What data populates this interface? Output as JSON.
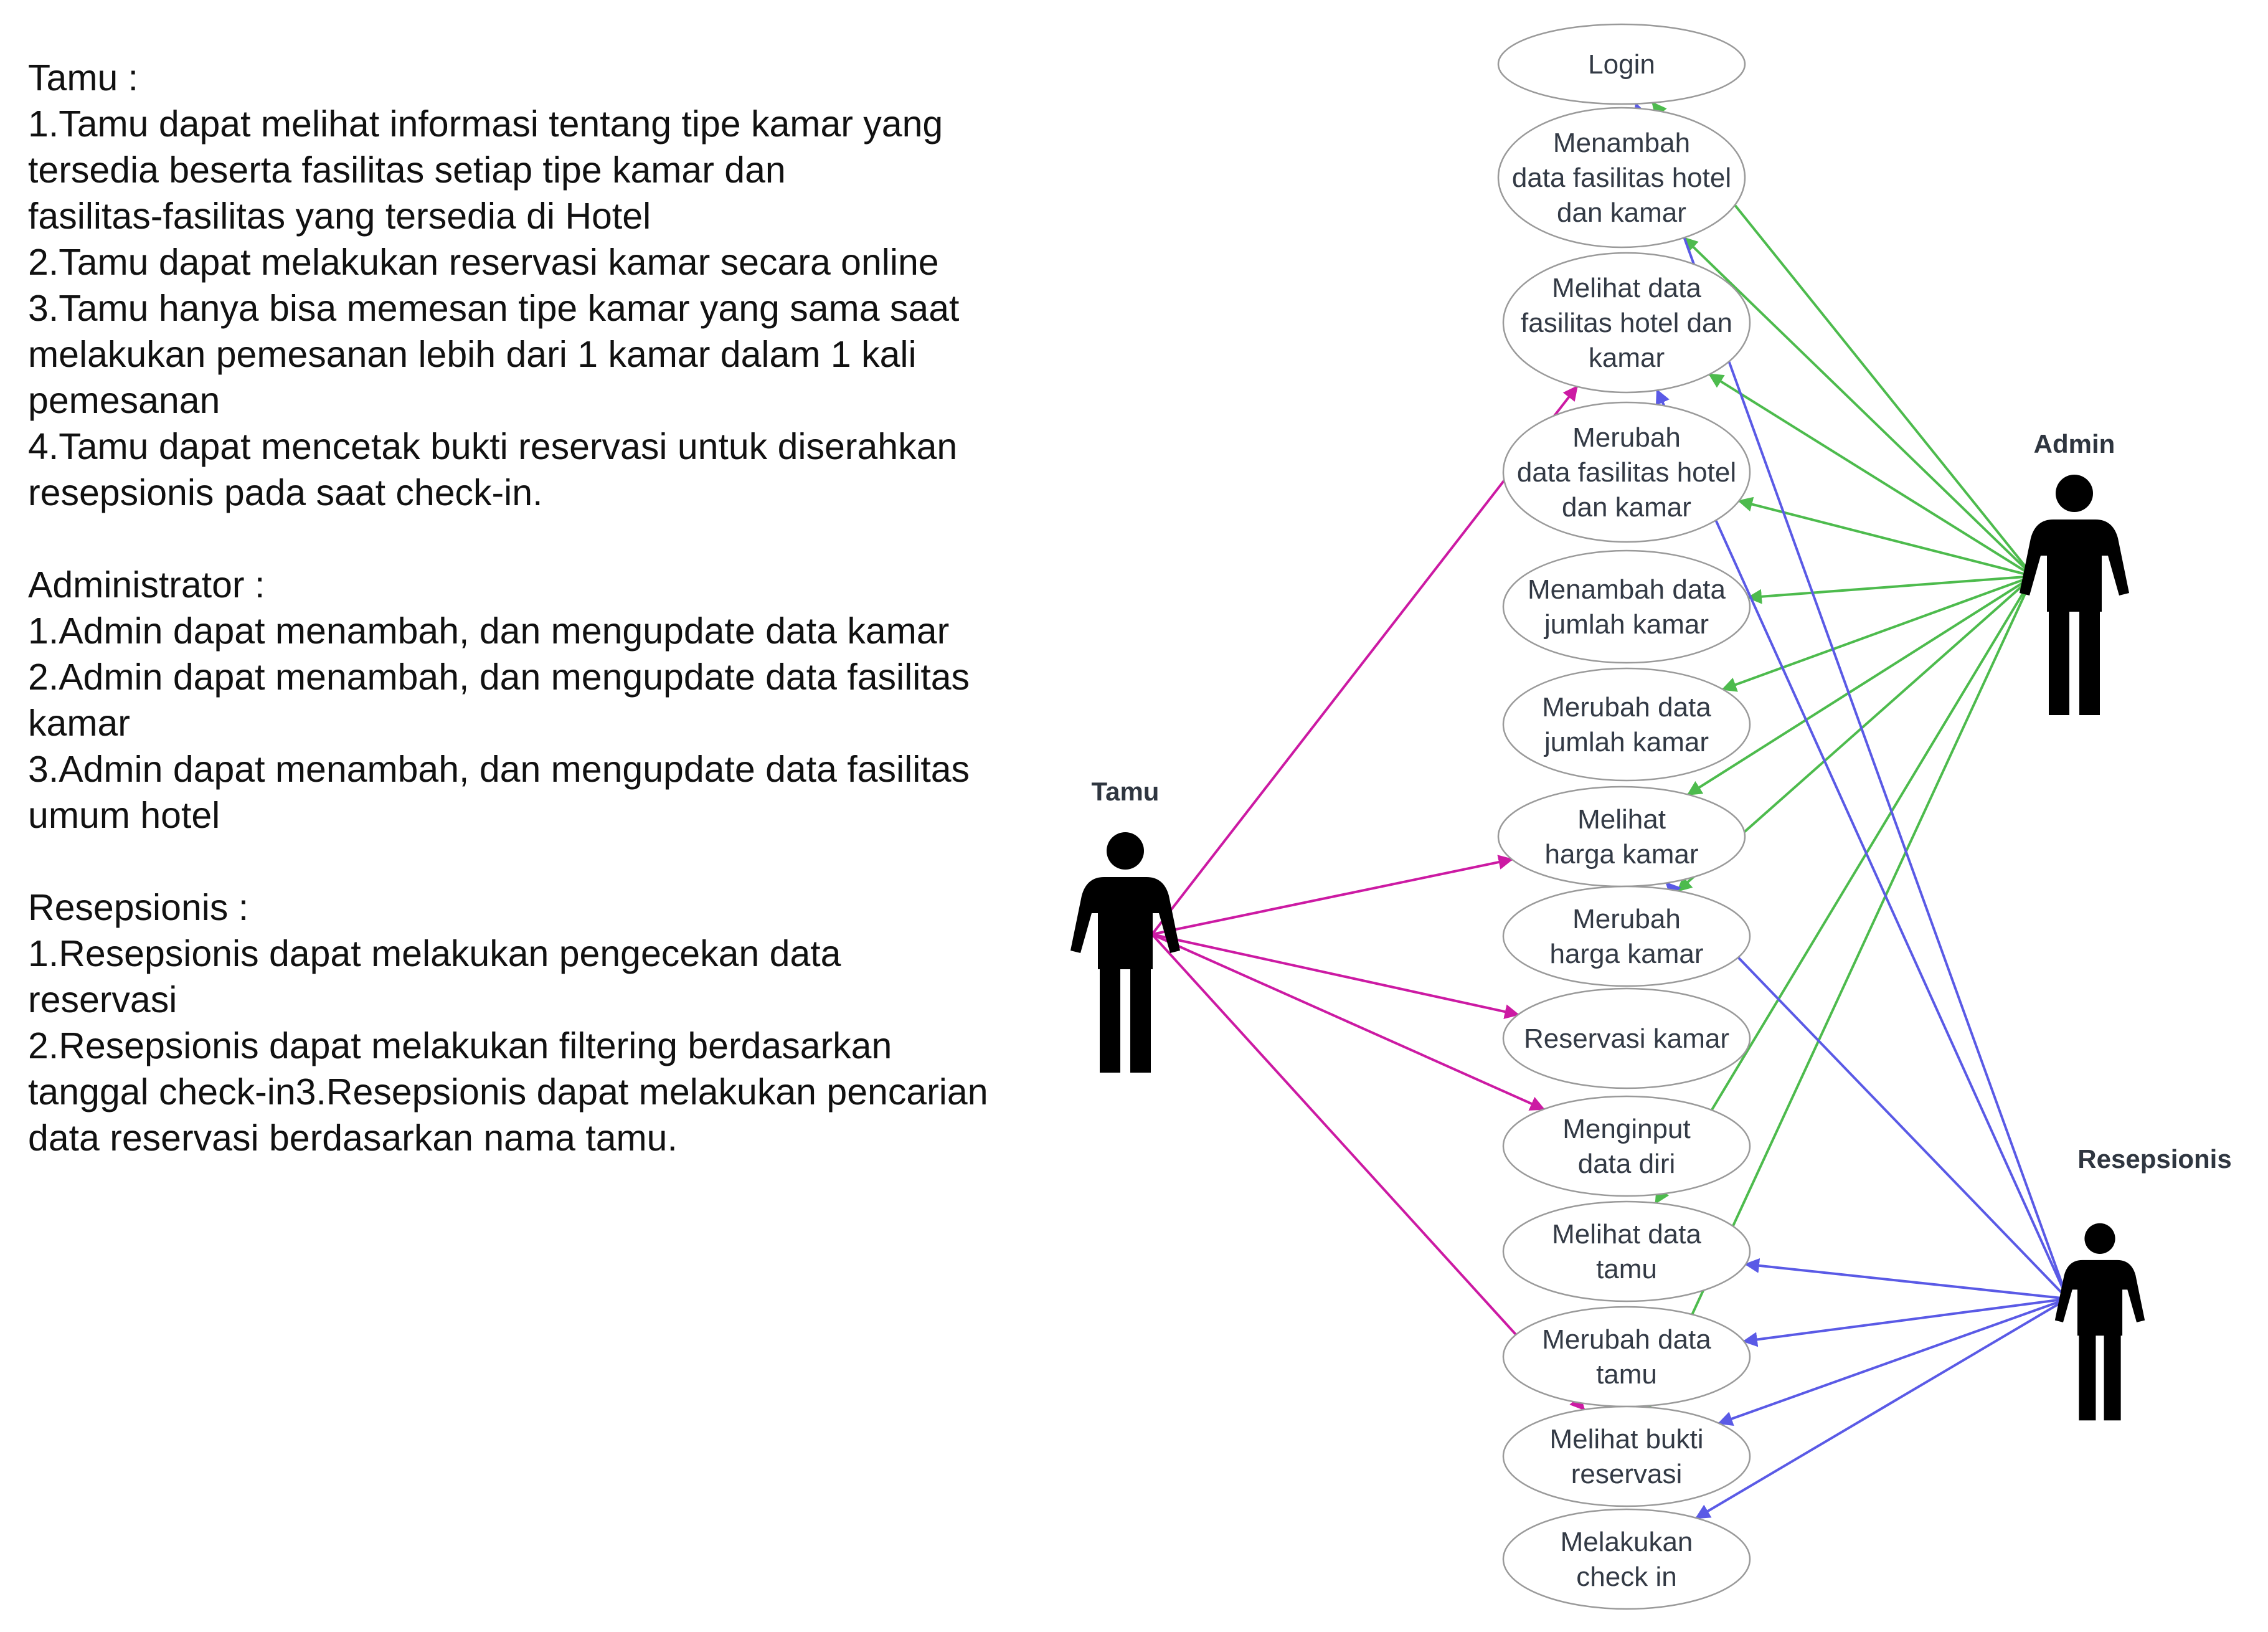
{
  "description": [
    {
      "heading": "Tamu :",
      "lines": [
        "1.Tamu dapat melihat informasi tentang tipe kamar yang",
        "tersedia beserta fasilitas setiap tipe kamar dan",
        "fasilitas-fasilitas yang tersedia di Hotel",
        "2.Tamu dapat melakukan reservasi kamar secara online",
        "3.Tamu hanya bisa memesan tipe kamar yang sama saat",
        "melakukan pemesanan lebih dari 1 kamar dalam 1 kali",
        "pemesanan",
        "4.Tamu dapat mencetak bukti reservasi untuk diserahkan",
        "resepsionis pada saat check-in."
      ]
    },
    {
      "heading": "Administrator :",
      "lines": [
        "1.Admin dapat menambah, dan mengupdate data kamar",
        "2.Admin dapat menambah, dan mengupdate data fasilitas",
        "kamar",
        "3.Admin dapat menambah, dan mengupdate data fasilitas",
        "umum hotel"
      ]
    },
    {
      "heading": "Resepsionis :",
      "lines": [
        "1.Resepsionis dapat melakukan pengecekan data",
        "reservasi",
        "2.Resepsionis dapat melakukan filtering berdasarkan",
        "tanggal check-in3.Resepsionis dapat melakukan pencarian",
        "data reservasi berdasarkan nama tamu."
      ]
    }
  ],
  "actors": [
    {
      "id": "tamu",
      "label": "Tamu"
    },
    {
      "id": "admin",
      "label": "Admin"
    },
    {
      "id": "resepsionis",
      "label": "Resepsionis"
    }
  ],
  "use_cases": [
    {
      "id": "login",
      "lines": [
        "Login"
      ]
    },
    {
      "id": "menambah-fasilitas",
      "lines": [
        "Menambah",
        "data fasilitas hotel",
        "dan kamar"
      ]
    },
    {
      "id": "melihat-fasilitas",
      "lines": [
        "Melihat data",
        "fasilitas hotel dan",
        "kamar"
      ]
    },
    {
      "id": "merubah-fasilitas",
      "lines": [
        "Merubah",
        "data fasilitas hotel",
        "dan kamar"
      ]
    },
    {
      "id": "menambah-jumlah",
      "lines": [
        "Menambah data",
        "jumlah kamar"
      ]
    },
    {
      "id": "merubah-jumlah",
      "lines": [
        "Merubah data",
        "jumlah kamar"
      ]
    },
    {
      "id": "melihat-harga",
      "lines": [
        "Melihat",
        "harga kamar"
      ]
    },
    {
      "id": "merubah-harga",
      "lines": [
        "Merubah",
        "harga kamar"
      ]
    },
    {
      "id": "reservasi-kamar",
      "lines": [
        "Reservasi kamar"
      ]
    },
    {
      "id": "menginput-data-diri",
      "lines": [
        "Menginput",
        "data diri"
      ]
    },
    {
      "id": "melihat-data-tamu",
      "lines": [
        "Melihat data",
        "tamu"
      ]
    },
    {
      "id": "merubah-data-tamu",
      "lines": [
        "Merubah data",
        "tamu"
      ]
    },
    {
      "id": "melihat-bukti-reservasi",
      "lines": [
        "Melihat bukti",
        "reservasi"
      ]
    },
    {
      "id": "melakukan-check-in",
      "lines": [
        "Melakukan",
        "check in"
      ]
    }
  ],
  "colors": {
    "tamu": "#cc1aa3",
    "admin": "#4dbb4d",
    "resepsionis": "#5a5ae6",
    "ellipse_stroke": "#9a9a9a",
    "actor_fill": "#000000"
  },
  "associations": [
    {
      "actor": "tamu",
      "use_case": "melihat-fasilitas"
    },
    {
      "actor": "tamu",
      "use_case": "melihat-harga"
    },
    {
      "actor": "tamu",
      "use_case": "reservasi-kamar"
    },
    {
      "actor": "tamu",
      "use_case": "menginput-data-diri"
    },
    {
      "actor": "tamu",
      "use_case": "melihat-bukti-reservasi"
    },
    {
      "actor": "admin",
      "use_case": "login"
    },
    {
      "actor": "admin",
      "use_case": "menambah-fasilitas"
    },
    {
      "actor": "admin",
      "use_case": "melihat-fasilitas"
    },
    {
      "actor": "admin",
      "use_case": "merubah-fasilitas"
    },
    {
      "actor": "admin",
      "use_case": "menambah-jumlah"
    },
    {
      "actor": "admin",
      "use_case": "merubah-jumlah"
    },
    {
      "actor": "admin",
      "use_case": "melihat-harga"
    },
    {
      "actor": "admin",
      "use_case": "merubah-harga"
    },
    {
      "actor": "admin",
      "use_case": "melihat-data-tamu"
    },
    {
      "actor": "admin",
      "use_case": "melihat-bukti-reservasi"
    },
    {
      "actor": "resepsionis",
      "use_case": "login"
    },
    {
      "actor": "resepsionis",
      "use_case": "melihat-fasilitas"
    },
    {
      "actor": "resepsionis",
      "use_case": "melihat-harga"
    },
    {
      "actor": "resepsionis",
      "use_case": "melihat-data-tamu"
    },
    {
      "actor": "resepsionis",
      "use_case": "merubah-data-tamu"
    },
    {
      "actor": "resepsionis",
      "use_case": "melihat-bukti-reservasi"
    },
    {
      "actor": "resepsionis",
      "use_case": "melakukan-check-in"
    }
  ]
}
